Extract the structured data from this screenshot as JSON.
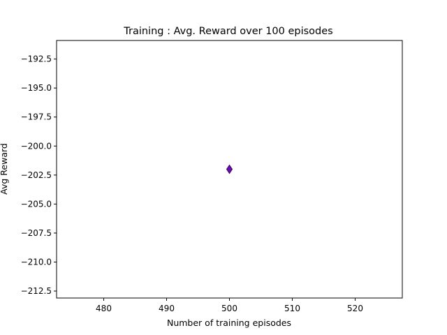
{
  "chart_data": {
    "type": "scatter",
    "title": "Training : Avg. Reward over 100 episodes",
    "xlabel": "Number of training episodes",
    "ylabel": "Avg Reward",
    "xlim": [
      472.5,
      527.5
    ],
    "ylim": [
      -213.1,
      -190.9
    ],
    "xticks": [
      480,
      490,
      500,
      510,
      520
    ],
    "yticks": [
      -192.5,
      -195.0,
      -197.5,
      -200.0,
      -202.5,
      -205.0,
      -207.5,
      -210.0,
      -212.5
    ],
    "xtick_labels": [
      "480",
      "490",
      "500",
      "510",
      "520"
    ],
    "ytick_labels": [
      "−192.5",
      "−195.0",
      "−197.5",
      "−200.0",
      "−202.5",
      "−205.0",
      "−207.5",
      "−210.0",
      "−212.5"
    ],
    "grid": false,
    "series": [
      {
        "marker": "diamond",
        "color": "#6a0dad",
        "points": [
          {
            "x": 500,
            "y": -202.0
          }
        ]
      }
    ]
  }
}
